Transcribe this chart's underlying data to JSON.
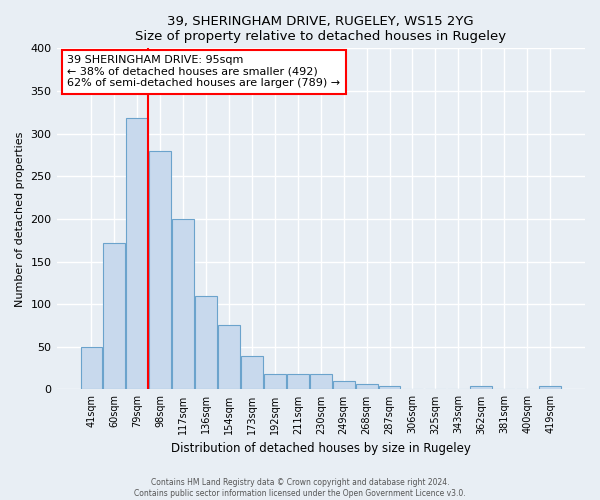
{
  "title": "39, SHERINGHAM DRIVE, RUGELEY, WS15 2YG",
  "subtitle": "Size of property relative to detached houses in Rugeley",
  "xlabel": "Distribution of detached houses by size in Rugeley",
  "ylabel": "Number of detached properties",
  "footer_line1": "Contains HM Land Registry data © Crown copyright and database right 2024.",
  "footer_line2": "Contains public sector information licensed under the Open Government Licence v3.0.",
  "bar_labels": [
    "41sqm",
    "60sqm",
    "79sqm",
    "98sqm",
    "117sqm",
    "136sqm",
    "154sqm",
    "173sqm",
    "192sqm",
    "211sqm",
    "230sqm",
    "249sqm",
    "268sqm",
    "287sqm",
    "306sqm",
    "325sqm",
    "343sqm",
    "362sqm",
    "381sqm",
    "400sqm",
    "419sqm"
  ],
  "bar_heights": [
    50,
    172,
    318,
    280,
    200,
    110,
    75,
    39,
    18,
    18,
    18,
    10,
    6,
    4,
    0,
    0,
    0,
    4,
    0,
    0,
    4
  ],
  "bar_color": "#c8d9ed",
  "bar_edge_color": "#6ba3cc",
  "ylim": [
    0,
    400
  ],
  "yticks": [
    0,
    50,
    100,
    150,
    200,
    250,
    300,
    350,
    400
  ],
  "annotation_title": "39 SHERINGHAM DRIVE: 95sqm",
  "annotation_line2": "← 38% of detached houses are smaller (492)",
  "annotation_line3": "62% of semi-detached houses are larger (789) →",
  "red_line_bin_index": 2,
  "background_color": "#e8eef4",
  "grid_color": "#d0dae4",
  "plot_bg_color": "#e8eef4"
}
